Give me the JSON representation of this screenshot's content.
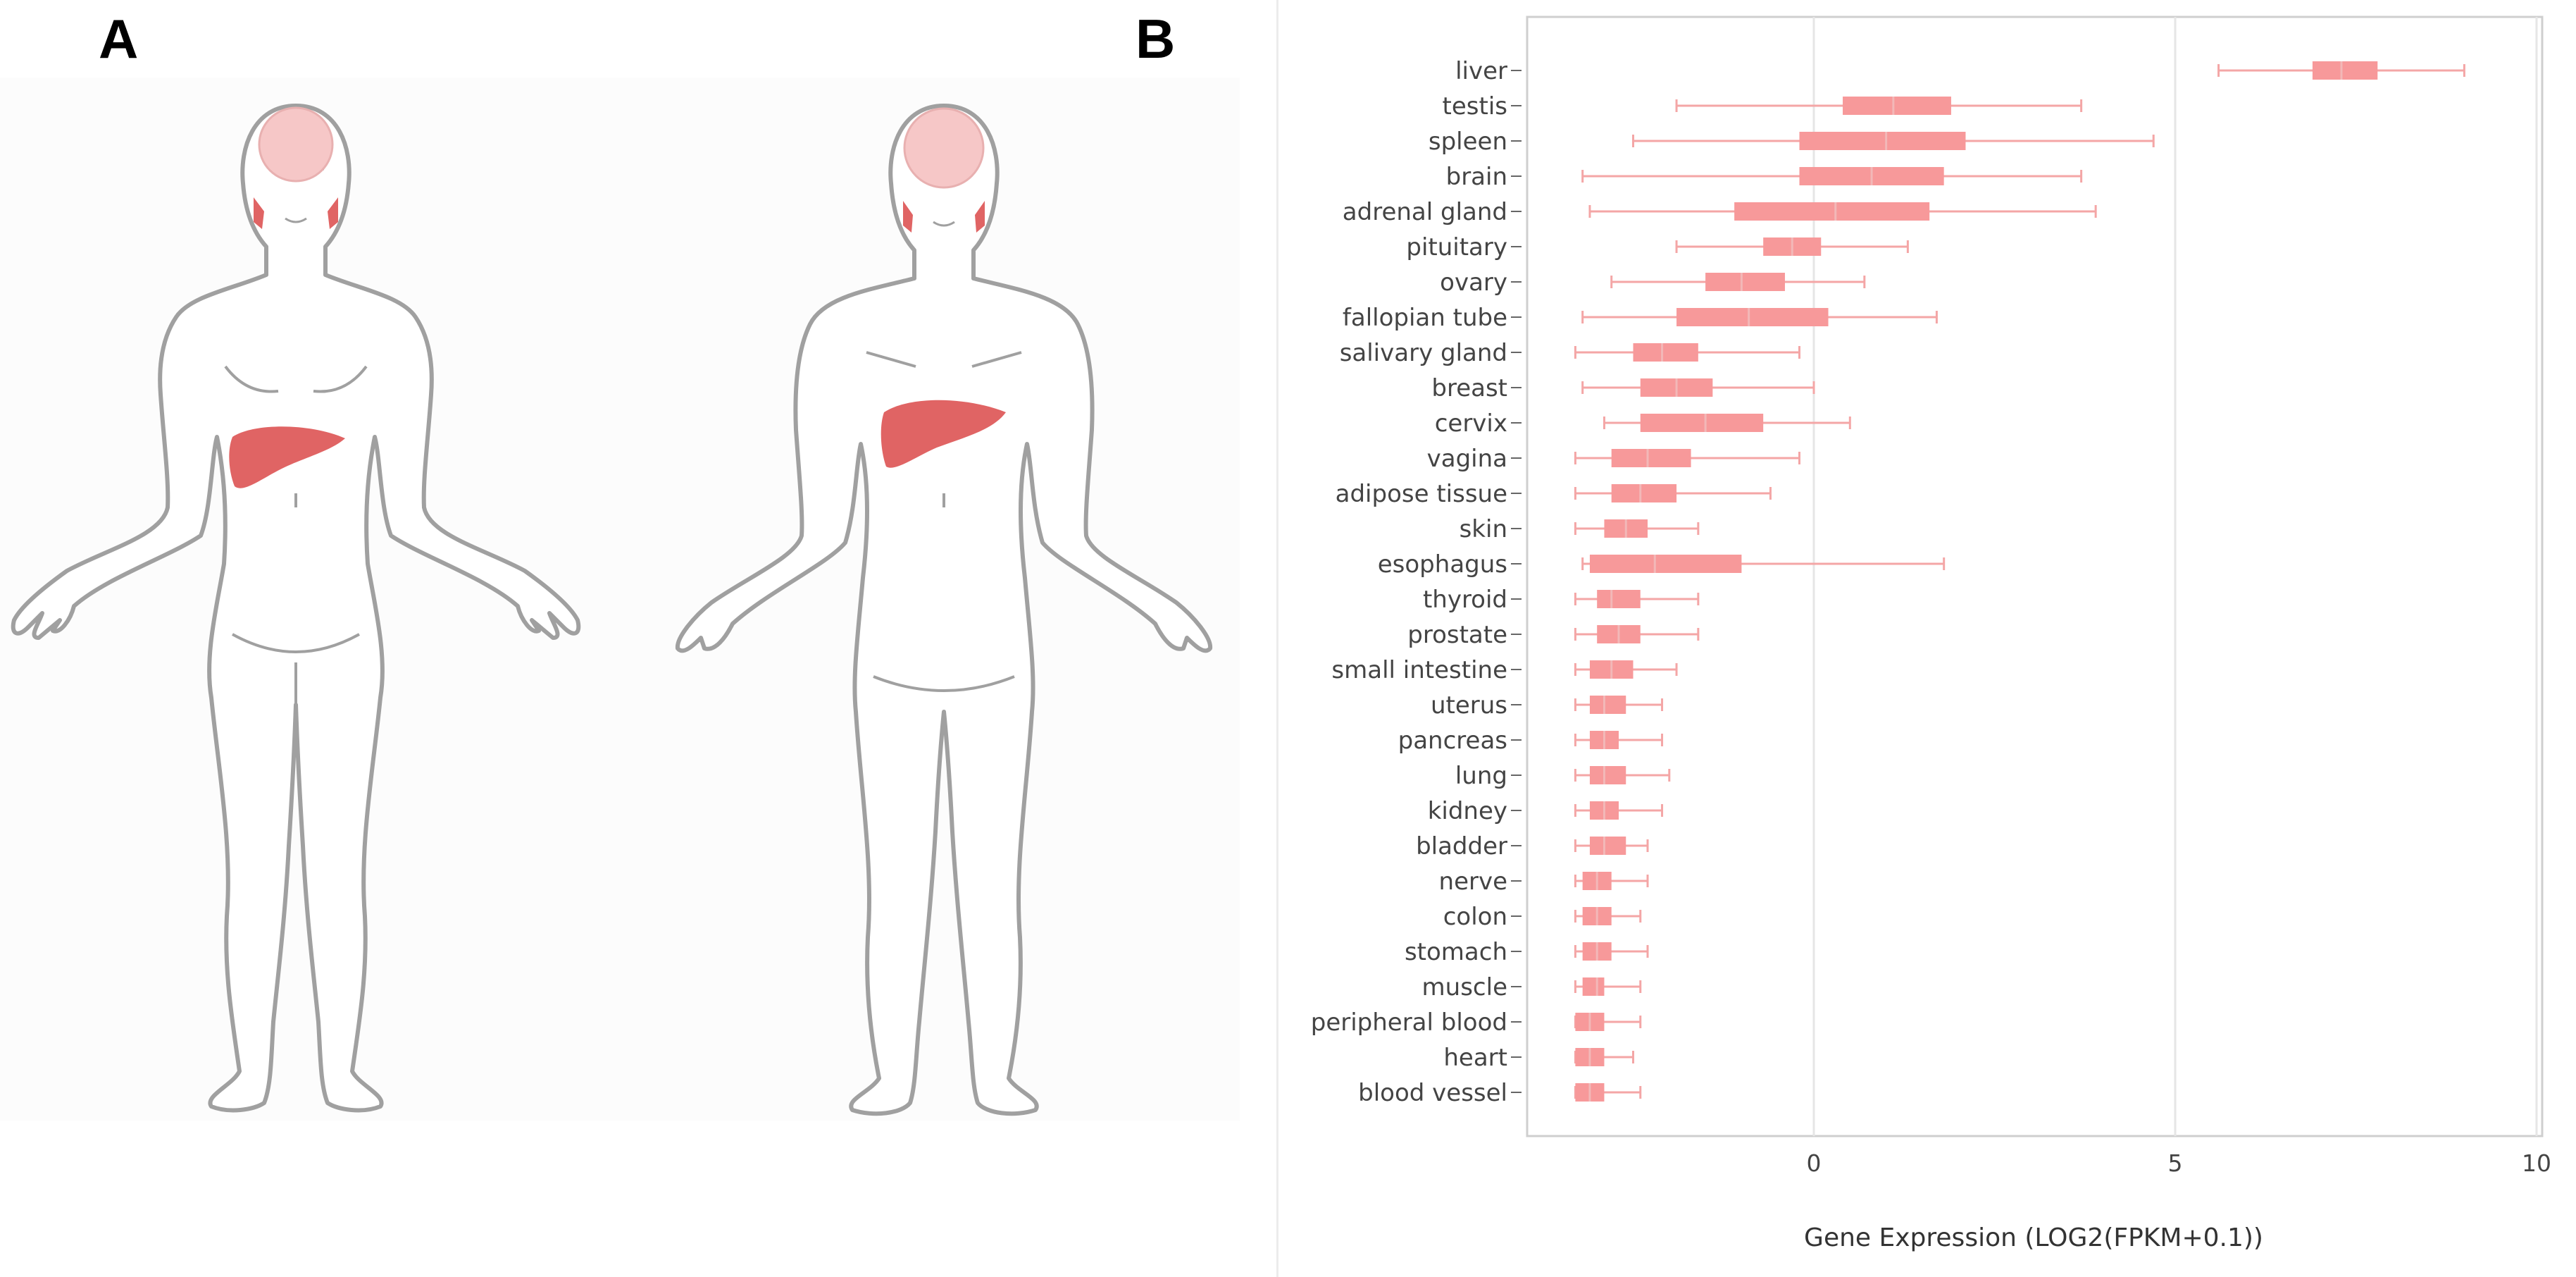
{
  "panels": {
    "a": "A",
    "b": "B"
  },
  "colors": {
    "box": "#f7999a",
    "whisker": "#f4a6a6",
    "organ": "#e06464",
    "outline": "#9a9a9a",
    "brain": "#f6c7c7"
  },
  "figures": {
    "female": "female-body-figure",
    "male": "male-body-figure"
  },
  "chart_data": {
    "type": "box",
    "xlabel": "Gene Expression (LOG2(FPKM+0.1))",
    "xlim": [
      -4,
      10.1
    ],
    "xticks": [
      0,
      5,
      10
    ],
    "grid": true,
    "series": [
      {
        "name": "liver",
        "min": 5.6,
        "q1": 6.9,
        "median": 7.3,
        "q3": 7.8,
        "max": 9.0
      },
      {
        "name": "testis",
        "min": -1.9,
        "q1": 0.4,
        "median": 1.1,
        "q3": 1.9,
        "max": 3.7
      },
      {
        "name": "spleen",
        "min": -2.5,
        "q1": -0.2,
        "median": 1.0,
        "q3": 2.1,
        "max": 4.7
      },
      {
        "name": "brain",
        "min": -3.2,
        "q1": -0.2,
        "median": 0.8,
        "q3": 1.8,
        "max": 3.7
      },
      {
        "name": "adrenal gland",
        "min": -3.1,
        "q1": -1.1,
        "median": 0.3,
        "q3": 1.6,
        "max": 3.9
      },
      {
        "name": "pituitary",
        "min": -1.9,
        "q1": -0.7,
        "median": -0.3,
        "q3": 0.1,
        "max": 1.3
      },
      {
        "name": "ovary",
        "min": -2.8,
        "q1": -1.5,
        "median": -1.0,
        "q3": -0.4,
        "max": 0.7
      },
      {
        "name": "fallopian tube",
        "min": -3.2,
        "q1": -1.9,
        "median": -0.9,
        "q3": 0.2,
        "max": 1.7
      },
      {
        "name": "salivary gland",
        "min": -3.3,
        "q1": -2.5,
        "median": -2.1,
        "q3": -1.6,
        "max": -0.2
      },
      {
        "name": "breast",
        "min": -3.2,
        "q1": -2.4,
        "median": -1.9,
        "q3": -1.4,
        "max": 0.0
      },
      {
        "name": "cervix",
        "min": -2.9,
        "q1": -2.4,
        "median": -1.5,
        "q3": -0.7,
        "max": 0.5
      },
      {
        "name": "vagina",
        "min": -3.3,
        "q1": -2.8,
        "median": -2.3,
        "q3": -1.7,
        "max": -0.2
      },
      {
        "name": "adipose tissue",
        "min": -3.3,
        "q1": -2.8,
        "median": -2.4,
        "q3": -1.9,
        "max": -0.6
      },
      {
        "name": "skin",
        "min": -3.3,
        "q1": -2.9,
        "median": -2.6,
        "q3": -2.3,
        "max": -1.6
      },
      {
        "name": "esophagus",
        "min": -3.2,
        "q1": -3.1,
        "median": -2.2,
        "q3": -1.0,
        "max": 1.8
      },
      {
        "name": "thyroid",
        "min": -3.3,
        "q1": -3.0,
        "median": -2.8,
        "q3": -2.4,
        "max": -1.6
      },
      {
        "name": "prostate",
        "min": -3.3,
        "q1": -3.0,
        "median": -2.7,
        "q3": -2.4,
        "max": -1.6
      },
      {
        "name": "small intestine",
        "min": -3.3,
        "q1": -3.1,
        "median": -2.8,
        "q3": -2.5,
        "max": -1.9
      },
      {
        "name": "uterus",
        "min": -3.3,
        "q1": -3.1,
        "median": -2.9,
        "q3": -2.6,
        "max": -2.1
      },
      {
        "name": "pancreas",
        "min": -3.3,
        "q1": -3.1,
        "median": -2.9,
        "q3": -2.7,
        "max": -2.1
      },
      {
        "name": "lung",
        "min": -3.3,
        "q1": -3.1,
        "median": -2.9,
        "q3": -2.6,
        "max": -2.0
      },
      {
        "name": "kidney",
        "min": -3.3,
        "q1": -3.1,
        "median": -2.9,
        "q3": -2.7,
        "max": -2.1
      },
      {
        "name": "bladder",
        "min": -3.3,
        "q1": -3.1,
        "median": -2.9,
        "q3": -2.6,
        "max": -2.3
      },
      {
        "name": "nerve",
        "min": -3.3,
        "q1": -3.2,
        "median": -3.0,
        "q3": -2.8,
        "max": -2.3
      },
      {
        "name": "colon",
        "min": -3.3,
        "q1": -3.2,
        "median": -3.0,
        "q3": -2.8,
        "max": -2.4
      },
      {
        "name": "stomach",
        "min": -3.3,
        "q1": -3.2,
        "median": -3.0,
        "q3": -2.8,
        "max": -2.3
      },
      {
        "name": "muscle",
        "min": -3.3,
        "q1": -3.2,
        "median": -3.0,
        "q3": -2.9,
        "max": -2.4
      },
      {
        "name": "peripheral blood",
        "min": -3.3,
        "q1": -3.3,
        "median": -3.1,
        "q3": -2.9,
        "max": -2.4
      },
      {
        "name": "heart",
        "min": -3.3,
        "q1": -3.3,
        "median": -3.1,
        "q3": -2.9,
        "max": -2.5
      },
      {
        "name": "blood vessel",
        "min": -3.3,
        "q1": -3.3,
        "median": -3.1,
        "q3": -2.9,
        "max": -2.4
      }
    ]
  }
}
